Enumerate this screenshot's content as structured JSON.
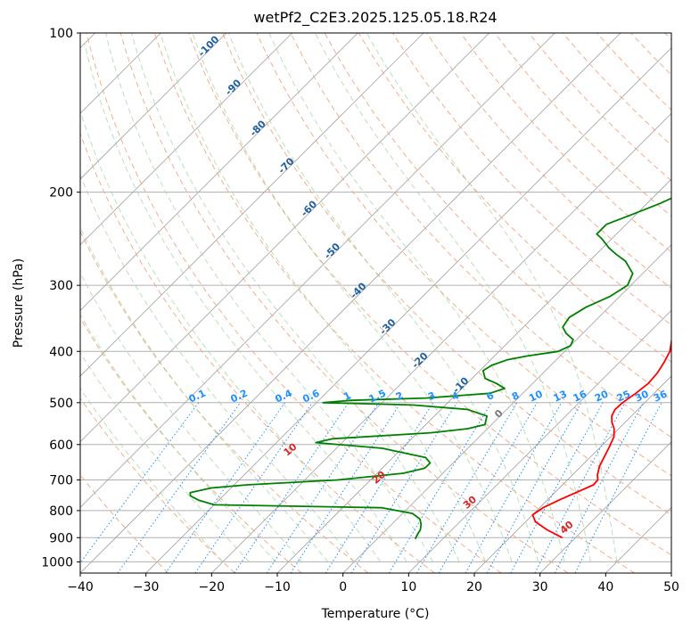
{
  "chart_data": {
    "type": "line",
    "title": "wetPf2_C2E3.2025.125.05.18.R24",
    "xlabel": "Temperature (°C)",
    "ylabel": "Pressure (hPa)",
    "xlim": [
      -40,
      50
    ],
    "ylim": [
      1050,
      100
    ],
    "y_scale": "log",
    "grid": true,
    "x_ticks": [
      "−40",
      "−30",
      "−20",
      "−10",
      "0",
      "10",
      "20",
      "30",
      "40",
      "50"
    ],
    "y_ticks": [
      "100",
      "200",
      "300",
      "400",
      "500",
      "600",
      "700",
      "800",
      "900",
      "1000"
    ],
    "isotherm_labels": [
      "-100",
      "-90",
      "-80",
      "-70",
      "-60",
      "-50",
      "-40",
      "-30",
      "-20",
      "-10"
    ],
    "mixing_ratio_labels": [
      "0.1",
      "0.2",
      "0.4",
      "0.6",
      "1",
      "1.5",
      "2",
      "3",
      "4",
      "6",
      "8",
      "10",
      "13",
      "16",
      "20",
      "25",
      "30",
      "36"
    ],
    "dry_adiabat_labels": [
      "10",
      "20",
      "30",
      "40"
    ],
    "moist_adiabat_labels": [
      "0"
    ],
    "series": [
      {
        "color": "#ff0000",
        "points": [
          [
            900,
            28
          ],
          [
            870,
            24.5
          ],
          [
            840,
            21.5
          ],
          [
            815,
            20
          ],
          [
            790,
            20.5
          ],
          [
            760,
            22
          ],
          [
            735,
            23.5
          ],
          [
            715,
            24.7
          ],
          [
            700,
            24.6
          ],
          [
            685,
            23.8
          ],
          [
            660,
            22.8
          ],
          [
            630,
            22
          ],
          [
            605,
            21.3
          ],
          [
            580,
            20.5
          ],
          [
            560,
            19.3
          ],
          [
            545,
            18
          ],
          [
            530,
            17
          ],
          [
            515,
            16.5
          ],
          [
            500,
            16.6
          ],
          [
            480,
            17.2
          ],
          [
            460,
            17.6
          ],
          [
            440,
            17.4
          ],
          [
            420,
            16.8
          ],
          [
            400,
            16
          ],
          [
            380,
            14.5
          ],
          [
            360,
            12.8
          ],
          [
            340,
            11
          ],
          [
            320,
            9.8
          ],
          [
            300,
            8.8
          ],
          [
            280,
            8
          ],
          [
            260,
            7.5
          ],
          [
            240,
            7
          ],
          [
            225,
            6
          ],
          [
            210,
            4.5
          ],
          [
            195,
            3
          ],
          [
            185,
            1.8
          ],
          [
            175,
            0
          ],
          [
            165,
            -2
          ],
          [
            155,
            -4
          ],
          [
            145,
            -6
          ],
          [
            138,
            -6.8
          ],
          [
            130,
            -7
          ],
          [
            122,
            -6.5
          ],
          [
            115,
            -6
          ],
          [
            110,
            -5.5
          ],
          [
            105,
            -4.5
          ],
          [
            100,
            -4
          ]
        ]
      },
      {
        "color": "#008000",
        "points": [
          [
            905,
            5.8
          ],
          [
            890,
            5.5
          ],
          [
            870,
            5.2
          ],
          [
            850,
            4.5
          ],
          [
            830,
            3.5
          ],
          [
            810,
            1.5
          ],
          [
            790,
            -4
          ],
          [
            780,
            -30
          ],
          [
            765,
            -33
          ],
          [
            750,
            -35
          ],
          [
            740,
            -35.5
          ],
          [
            725,
            -33
          ],
          [
            715,
            -28
          ],
          [
            700,
            -15
          ],
          [
            680,
            -6
          ],
          [
            665,
            -3.5
          ],
          [
            650,
            -3.5
          ],
          [
            635,
            -5
          ],
          [
            610,
            -13
          ],
          [
            595,
            -24
          ],
          [
            585,
            -22
          ],
          [
            570,
            -8
          ],
          [
            560,
            -3
          ],
          [
            550,
            -1
          ],
          [
            530,
            -2
          ],
          [
            515,
            -6
          ],
          [
            505,
            -15
          ],
          [
            500,
            -29
          ],
          [
            495,
            -25
          ],
          [
            490,
            -14
          ],
          [
            480,
            -5
          ],
          [
            470,
            -3.5
          ],
          [
            460,
            -5.5
          ],
          [
            450,
            -8
          ],
          [
            435,
            -9.5
          ],
          [
            425,
            -9
          ],
          [
            415,
            -7.5
          ],
          [
            408,
            -5
          ],
          [
            400,
            -1
          ],
          [
            390,
            0
          ],
          [
            380,
            -0.5
          ],
          [
            370,
            -2.5
          ],
          [
            360,
            -4
          ],
          [
            345,
            -4.5
          ],
          [
            330,
            -3.5
          ],
          [
            315,
            -1.5
          ],
          [
            300,
            -0.5
          ],
          [
            285,
            -1.5
          ],
          [
            270,
            -4.5
          ],
          [
            262,
            -7
          ],
          [
            255,
            -9
          ],
          [
            245,
            -11.5
          ],
          [
            240,
            -13
          ],
          [
            230,
            -13
          ],
          [
            220,
            -10.5
          ],
          [
            210,
            -8
          ],
          [
            200,
            -6
          ],
          [
            190,
            -5
          ],
          [
            180,
            -5.5
          ],
          [
            170,
            -7.5
          ],
          [
            160,
            -9.5
          ],
          [
            150,
            -11.5
          ],
          [
            140,
            -12.5
          ],
          [
            130,
            -12.5
          ],
          [
            125,
            -11.5
          ],
          [
            120,
            -10
          ],
          [
            115,
            -8.5
          ],
          [
            110,
            -7
          ],
          [
            105,
            -5.5
          ],
          [
            100,
            -4.5
          ]
        ]
      }
    ]
  }
}
